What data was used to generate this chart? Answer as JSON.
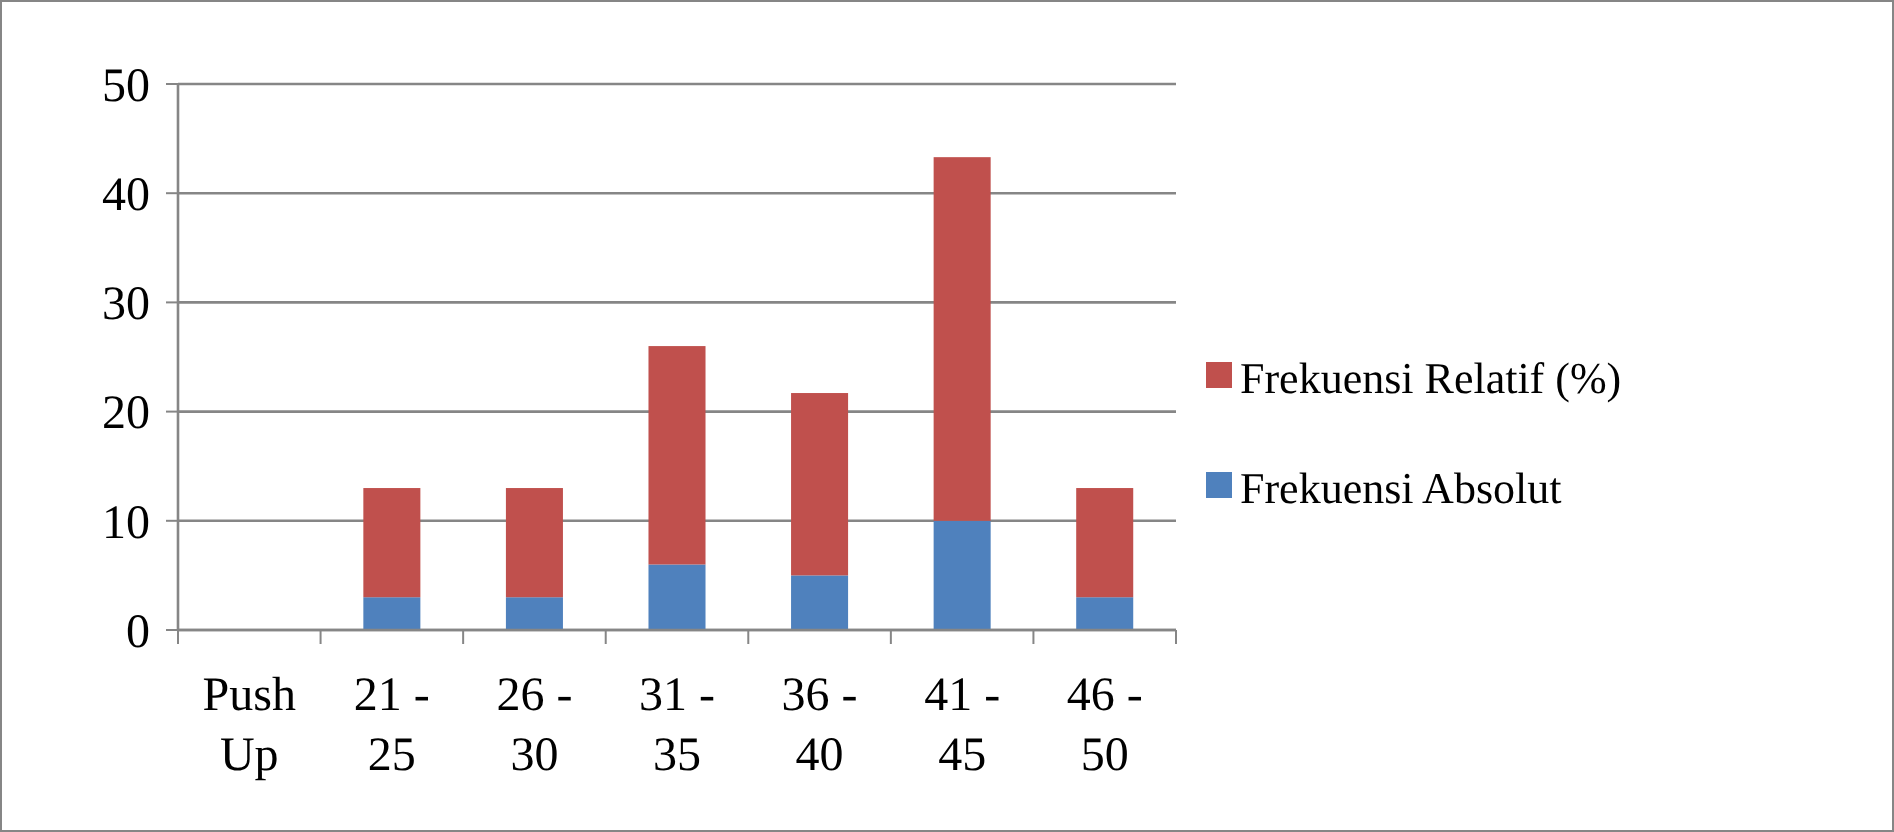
{
  "chart_data": {
    "type": "bar",
    "stacked": true,
    "categories": [
      "Push Up",
      "21 - 25",
      "26 - 30",
      "31 - 35",
      "36 - 40",
      "41 - 45",
      "46 - 50"
    ],
    "series": [
      {
        "name": "Frekuensi Absolut",
        "color": "#4f81bd",
        "values": [
          null,
          3,
          3,
          6,
          5,
          10,
          3
        ]
      },
      {
        "name": "Frekuensi Relatif (%)",
        "color": "#c0504d",
        "values": [
          null,
          10,
          10,
          20,
          16.7,
          33.3,
          10
        ]
      }
    ],
    "ylim": [
      0,
      50
    ],
    "yticks": [
      0,
      10,
      20,
      30,
      40,
      50
    ],
    "grid": "y",
    "legend": "right"
  }
}
